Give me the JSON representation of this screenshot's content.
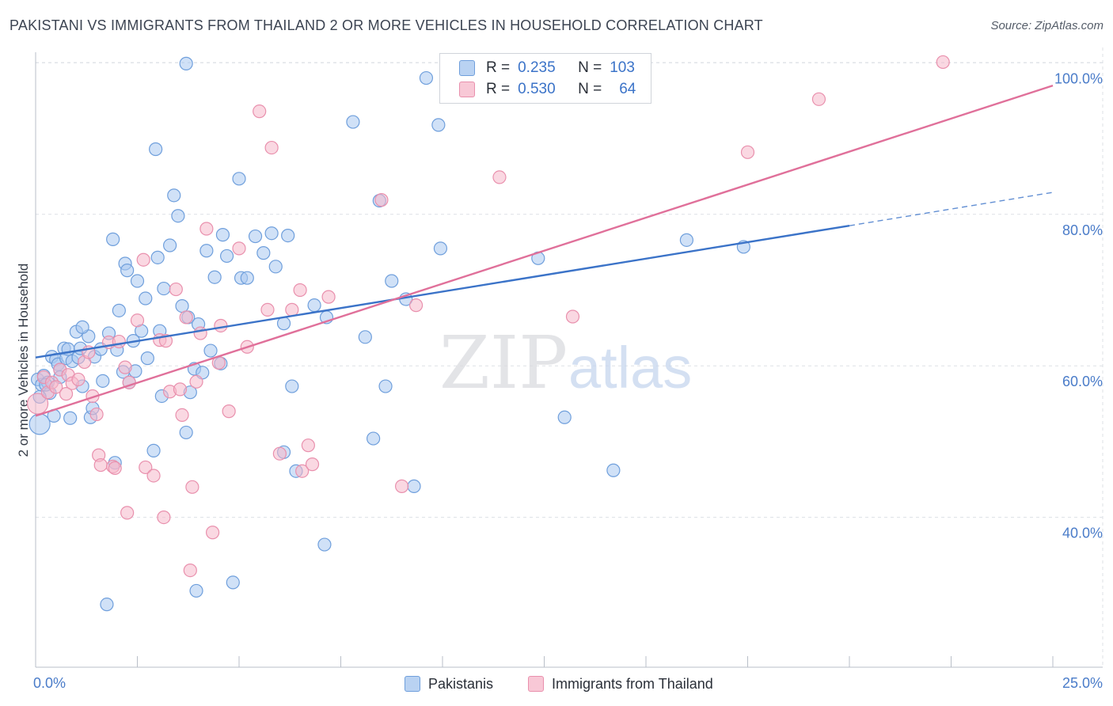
{
  "title": "PAKISTANI VS IMMIGRANTS FROM THAILAND 2 OR MORE VEHICLES IN HOUSEHOLD CORRELATION CHART",
  "source": "Source: ZipAtlas.com",
  "watermark": {
    "zip": "ZIP",
    "atlas": "atlas"
  },
  "colors": {
    "blue_fill": "#a9c8f0",
    "blue_stroke": "#6f9fdc",
    "blue_line": "#3b73c8",
    "pink_fill": "#f6b8cb",
    "pink_stroke": "#e990ad",
    "pink_line": "#e0709a",
    "axis_text": "#4a7cc9",
    "grid": "#dde1e6"
  },
  "legend": {
    "rows": [
      {
        "r_label": "R =",
        "r_value": "0.235",
        "n_label": "N =",
        "n_value": "103"
      },
      {
        "r_label": "R =",
        "r_value": "0.530",
        "n_label": "N =",
        "n_value": "64"
      }
    ]
  },
  "bottom_legend": {
    "series1": "Pakistanis",
    "series2": "Immigrants from Thailand"
  },
  "chart_data": {
    "type": "scatter",
    "title": "PAKISTANI VS IMMIGRANTS FROM THAILAND 2 OR MORE VEHICLES IN HOUSEHOLD CORRELATION CHART",
    "xlabel": "",
    "ylabel": "2 or more Vehicles in Household",
    "xlim": [
      0,
      25
    ],
    "ylim": [
      20,
      102
    ],
    "x_tick_labels": [
      "0.0%",
      "25.0%"
    ],
    "y_ticks": [
      40,
      60,
      80,
      100
    ],
    "y_tick_labels": [
      "40.0%",
      "60.0%",
      "80.0%",
      "100.0%"
    ],
    "grid": true,
    "legend_position": "top-center",
    "series": [
      {
        "name": "Pakistanis",
        "r": 0.235,
        "n": 103,
        "trend": {
          "x0": 0,
          "y0": 61.1,
          "x1": 20,
          "y1": 78.5,
          "dash_to_x": 25,
          "dash_to_y": 82.9
        },
        "points": [
          [
            0.05,
            58.2
          ],
          [
            0.1,
            52.3
          ],
          [
            0.15,
            57.5
          ],
          [
            0.2,
            58.7
          ],
          [
            0.3,
            57.8
          ],
          [
            0.35,
            56.4
          ],
          [
            0.4,
            61.2
          ],
          [
            0.45,
            53.4
          ],
          [
            0.5,
            60.8
          ],
          [
            0.55,
            60.2
          ],
          [
            0.6,
            59.5
          ],
          [
            0.7,
            62.3
          ],
          [
            0.75,
            61.0
          ],
          [
            0.8,
            62.2
          ],
          [
            0.85,
            53.1
          ],
          [
            0.9,
            60.6
          ],
          [
            1.0,
            64.5
          ],
          [
            1.05,
            61.1
          ],
          [
            1.1,
            62.3
          ],
          [
            1.15,
            57.3
          ],
          [
            1.3,
            63.9
          ],
          [
            1.35,
            53.2
          ],
          [
            1.4,
            54.4
          ],
          [
            1.45,
            61.2
          ],
          [
            1.6,
            62.2
          ],
          [
            1.65,
            58.0
          ],
          [
            1.75,
            28.5
          ],
          [
            1.8,
            64.3
          ],
          [
            1.9,
            76.7
          ],
          [
            1.95,
            47.2
          ],
          [
            2.0,
            62.1
          ],
          [
            2.05,
            67.3
          ],
          [
            2.15,
            59.2
          ],
          [
            2.2,
            73.5
          ],
          [
            2.25,
            72.6
          ],
          [
            2.3,
            57.8
          ],
          [
            2.4,
            63.3
          ],
          [
            2.45,
            59.3
          ],
          [
            2.5,
            71.2
          ],
          [
            2.6,
            64.6
          ],
          [
            2.7,
            68.9
          ],
          [
            2.75,
            61.0
          ],
          [
            2.9,
            48.8
          ],
          [
            2.95,
            88.6
          ],
          [
            3.0,
            74.3
          ],
          [
            3.05,
            64.6
          ],
          [
            3.1,
            56.0
          ],
          [
            3.15,
            70.2
          ],
          [
            3.3,
            75.9
          ],
          [
            3.4,
            82.5
          ],
          [
            3.5,
            79.8
          ],
          [
            3.6,
            67.9
          ],
          [
            3.7,
            51.2
          ],
          [
            3.75,
            66.4
          ],
          [
            3.8,
            56.5
          ],
          [
            3.9,
            59.6
          ],
          [
            4.0,
            65.5
          ],
          [
            4.1,
            59.1
          ],
          [
            4.2,
            75.2
          ],
          [
            4.3,
            62.0
          ],
          [
            4.4,
            71.7
          ],
          [
            4.55,
            60.3
          ],
          [
            4.6,
            77.3
          ],
          [
            4.7,
            74.5
          ],
          [
            4.85,
            31.4
          ],
          [
            5.0,
            84.7
          ],
          [
            5.05,
            71.6
          ],
          [
            5.2,
            71.6
          ],
          [
            5.4,
            77.1
          ],
          [
            5.6,
            74.9
          ],
          [
            5.8,
            77.5
          ],
          [
            5.9,
            73.1
          ],
          [
            6.1,
            65.6
          ],
          [
            6.2,
            77.2
          ],
          [
            6.3,
            57.3
          ],
          [
            6.4,
            46.1
          ],
          [
            7.1,
            36.4
          ],
          [
            7.15,
            66.4
          ],
          [
            7.8,
            92.2
          ],
          [
            8.1,
            63.8
          ],
          [
            8.3,
            50.4
          ],
          [
            8.6,
            57.3
          ],
          [
            8.75,
            71.2
          ],
          [
            9.3,
            44.1
          ],
          [
            9.6,
            98.0
          ],
          [
            9.9,
            91.8
          ],
          [
            9.95,
            75.5
          ],
          [
            11.2,
            99.9
          ],
          [
            12.35,
            74.2
          ],
          [
            13.0,
            53.2
          ],
          [
            14.2,
            46.2
          ],
          [
            16.0,
            76.6
          ],
          [
            17.4,
            75.7
          ],
          [
            3.7,
            99.9
          ],
          [
            3.95,
            30.3
          ],
          [
            6.1,
            48.6
          ],
          [
            8.45,
            81.8
          ],
          [
            6.85,
            68.0
          ],
          [
            9.1,
            68.8
          ],
          [
            0.25,
            57.5
          ],
          [
            0.6,
            58.5
          ],
          [
            1.15,
            65.1
          ],
          [
            0.1,
            55.9
          ]
        ]
      },
      {
        "name": "Immigrants from Thailand",
        "r": 0.53,
        "n": 64,
        "trend": {
          "x0": 0,
          "y0": 53.4,
          "x1": 25,
          "y1": 97.0
        },
        "points": [
          [
            0.05,
            55.0
          ],
          [
            0.2,
            58.5
          ],
          [
            0.3,
            56.5
          ],
          [
            0.4,
            57.8
          ],
          [
            0.5,
            57.2
          ],
          [
            0.6,
            59.5
          ],
          [
            0.75,
            56.3
          ],
          [
            0.8,
            58.8
          ],
          [
            0.9,
            57.7
          ],
          [
            1.05,
            58.2
          ],
          [
            1.2,
            60.5
          ],
          [
            1.3,
            61.8
          ],
          [
            1.4,
            56.0
          ],
          [
            1.5,
            53.6
          ],
          [
            1.55,
            48.2
          ],
          [
            1.6,
            46.9
          ],
          [
            1.8,
            63.1
          ],
          [
            1.9,
            46.7
          ],
          [
            1.95,
            46.5
          ],
          [
            2.05,
            63.2
          ],
          [
            2.2,
            59.8
          ],
          [
            2.25,
            40.6
          ],
          [
            2.3,
            57.8
          ],
          [
            2.5,
            66.0
          ],
          [
            2.65,
            74.0
          ],
          [
            2.7,
            46.6
          ],
          [
            2.9,
            45.5
          ],
          [
            3.05,
            63.4
          ],
          [
            3.15,
            40.0
          ],
          [
            3.2,
            63.3
          ],
          [
            3.3,
            56.6
          ],
          [
            3.45,
            70.1
          ],
          [
            3.55,
            56.9
          ],
          [
            3.6,
            53.5
          ],
          [
            3.7,
            66.4
          ],
          [
            3.8,
            33.0
          ],
          [
            3.85,
            44.0
          ],
          [
            3.95,
            57.9
          ],
          [
            4.05,
            64.3
          ],
          [
            4.2,
            78.1
          ],
          [
            4.35,
            38.0
          ],
          [
            4.5,
            60.4
          ],
          [
            4.55,
            65.3
          ],
          [
            4.75,
            54.0
          ],
          [
            5.0,
            75.5
          ],
          [
            5.2,
            62.5
          ],
          [
            5.5,
            93.6
          ],
          [
            5.7,
            67.4
          ],
          [
            5.8,
            88.8
          ],
          [
            6.0,
            48.4
          ],
          [
            6.3,
            67.4
          ],
          [
            6.5,
            70.0
          ],
          [
            6.55,
            46.1
          ],
          [
            6.7,
            49.5
          ],
          [
            6.8,
            47.0
          ],
          [
            7.2,
            69.1
          ],
          [
            8.5,
            81.9
          ],
          [
            9.0,
            44.1
          ],
          [
            9.35,
            68.0
          ],
          [
            11.4,
            84.9
          ],
          [
            13.2,
            66.5
          ],
          [
            17.5,
            88.2
          ],
          [
            19.25,
            95.2
          ],
          [
            22.3,
            100.1
          ]
        ]
      }
    ]
  },
  "axis_labels": {
    "x_left": "0.0%",
    "x_right": "25.0%",
    "ylabel": "2 or more Vehicles in Household",
    "y_ticks": [
      "100.0%",
      "80.0%",
      "60.0%",
      "40.0%"
    ]
  }
}
